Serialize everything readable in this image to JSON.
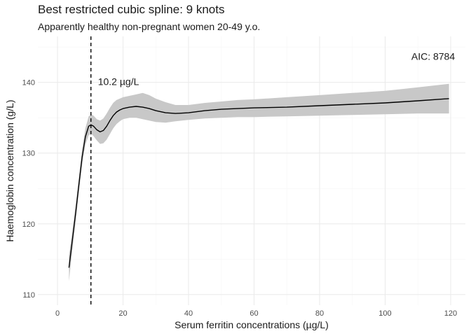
{
  "chart_data": {
    "type": "line",
    "title": "Best restricted cubic spline: 9 knots",
    "subtitle": "Apparently healthy non-pregnant women 20-49 y.o.",
    "xlabel": "Serum ferritin concentrations (µg/L)",
    "ylabel": "Haemoglobin concentration (g/L)",
    "xlim": [
      -6,
      124.5
    ],
    "ylim": [
      108.5,
      146.5
    ],
    "x_ticks": [
      0,
      20,
      40,
      60,
      80,
      100,
      120
    ],
    "x_tick_labels": [
      "0",
      "20",
      "40",
      "60",
      "80",
      "100",
      "120"
    ],
    "y_ticks": [
      110,
      120,
      130,
      140
    ],
    "y_tick_labels": [
      "110",
      "120",
      "130",
      "140"
    ],
    "grid": true,
    "legend": "none",
    "series": [
      {
        "x": [
          3.5,
          4.5,
          5.5,
          6.5,
          7.5,
          8.5,
          9.5,
          10.2,
          11,
          12,
          13,
          14,
          15,
          16,
          17,
          18,
          19,
          20,
          22,
          24,
          26,
          28,
          30,
          33,
          36,
          40,
          45,
          50,
          55,
          60,
          70,
          80,
          90,
          100,
          110,
          119.5
        ],
        "y": [
          113.8,
          117.6,
          121.4,
          125.4,
          129.4,
          132.3,
          133.8,
          134.0,
          133.8,
          133.3,
          133.0,
          133.2,
          133.8,
          134.6,
          135.3,
          135.8,
          136.1,
          136.3,
          136.5,
          136.6,
          136.5,
          136.3,
          136.0,
          135.7,
          135.6,
          135.7,
          136.0,
          136.2,
          136.3,
          136.4,
          136.5,
          136.7,
          136.9,
          137.1,
          137.4,
          137.7
        ],
        "lower": [
          111.9,
          116.2,
          120.2,
          124.3,
          128.3,
          131.2,
          132.5,
          132.8,
          132.4,
          131.8,
          131.3,
          131.4,
          131.9,
          132.7,
          133.5,
          134.1,
          134.5,
          134.8,
          135.0,
          135.0,
          134.8,
          134.6,
          134.4,
          134.3,
          134.5,
          134.7,
          134.9,
          135.0,
          135.1,
          135.1,
          135.2,
          135.3,
          135.4,
          135.5,
          135.6,
          135.6
        ],
        "upper": [
          115.5,
          118.9,
          122.6,
          126.5,
          130.5,
          133.5,
          135.2,
          135.5,
          135.3,
          134.8,
          134.6,
          134.9,
          135.6,
          136.4,
          137.1,
          137.5,
          137.7,
          137.9,
          138.1,
          138.3,
          138.5,
          138.2,
          137.7,
          137.2,
          136.8,
          136.8,
          137.1,
          137.3,
          137.5,
          137.6,
          137.9,
          138.2,
          138.5,
          138.8,
          139.3,
          139.8
        ]
      }
    ],
    "vline": {
      "x": 10.2,
      "label": "10.2 µg/L"
    },
    "annotations": [
      {
        "text": "AIC: 8784",
        "x": 108,
        "y": 143.7
      }
    ],
    "colors": {
      "line": "#000000",
      "ribbon": "#c8c8c8",
      "grid_major": "#ebebeb",
      "grid_minor": "#f5f5f5"
    }
  }
}
